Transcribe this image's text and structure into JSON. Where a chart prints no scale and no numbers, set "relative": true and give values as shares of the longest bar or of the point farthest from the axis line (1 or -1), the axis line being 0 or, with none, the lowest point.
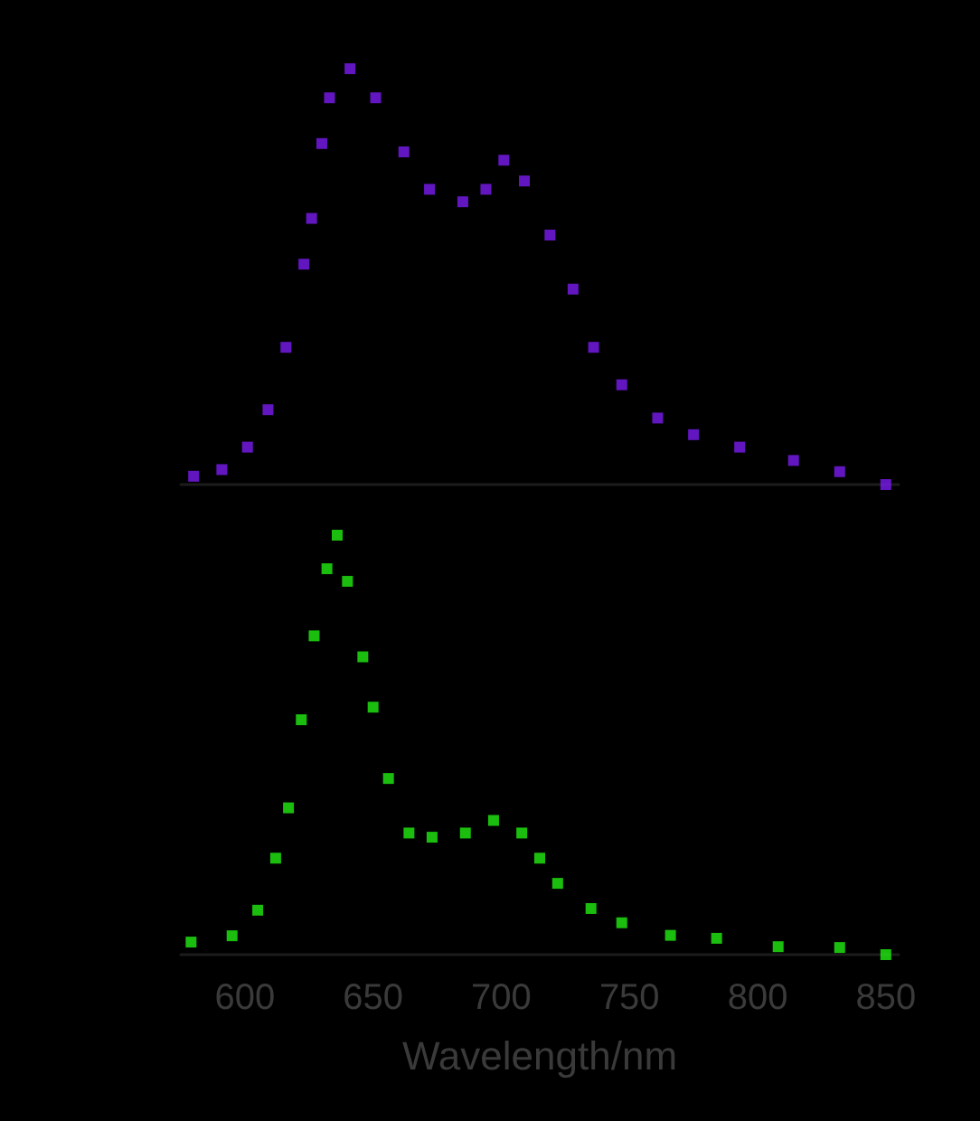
{
  "chart_data": [
    {
      "type": "scatter",
      "relative": true,
      "marker": "square",
      "tick_labels": false,
      "xlim": [
        575,
        855
      ],
      "xticks": [
        600,
        650,
        700,
        750,
        800,
        850
      ],
      "x": [
        580,
        591,
        601,
        609,
        616,
        623,
        626,
        630,
        633,
        641,
        651,
        662,
        672,
        685,
        694,
        701,
        709,
        719,
        728,
        736,
        747,
        761,
        775,
        793,
        814,
        832,
        850
      ],
      "series": [
        {
          "color": "#7a1cf0",
          "values": [
            0.02,
            0.036,
            0.09,
            0.18,
            0.33,
            0.53,
            0.64,
            0.82,
            0.93,
            1.0,
            0.93,
            0.8,
            0.71,
            0.68,
            0.71,
            0.78,
            0.73,
            0.6,
            0.47,
            0.33,
            0.24,
            0.16,
            0.12,
            0.09,
            0.058,
            0.031,
            0
          ]
        }
      ]
    },
    {
      "type": "scatter",
      "relative": true,
      "marker": "square",
      "tick_labels": "x",
      "xlabel": "Wavelength/nm",
      "xlim": [
        575,
        855
      ],
      "xticks": [
        600,
        650,
        700,
        750,
        800,
        850
      ],
      "x": [
        579,
        595,
        605,
        612,
        617,
        622,
        627,
        632,
        636,
        640,
        646,
        650,
        656,
        664,
        673,
        686,
        697,
        708,
        715,
        722,
        735,
        747,
        766,
        784,
        808,
        832,
        850
      ],
      "series": [
        {
          "color": "#22ee11",
          "values": [
            0.03,
            0.045,
            0.106,
            0.23,
            0.35,
            0.56,
            0.76,
            0.92,
            1.0,
            0.89,
            0.71,
            0.59,
            0.42,
            0.29,
            0.28,
            0.29,
            0.32,
            0.29,
            0.23,
            0.17,
            0.11,
            0.076,
            0.046,
            0.039,
            0.019,
            0.017,
            0
          ]
        }
      ]
    }
  ]
}
